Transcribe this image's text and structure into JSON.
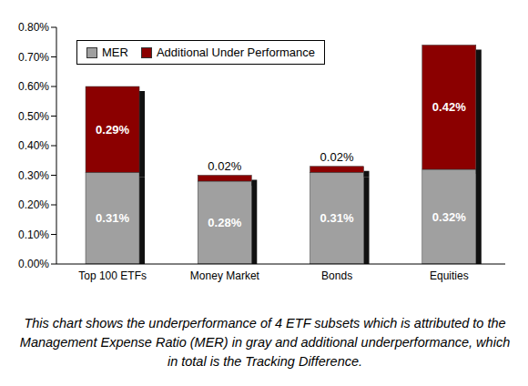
{
  "chart_data": {
    "type": "bar",
    "stacked": true,
    "categories": [
      "Top 100 ETFs",
      "Money Market",
      "Bonds",
      "Equities"
    ],
    "series": [
      {
        "name": "MER",
        "color": "#a0a0a0",
        "values": [
          0.31,
          0.28,
          0.31,
          0.32
        ],
        "value_labels": [
          "0.31%",
          "0.28%",
          "0.31%",
          "0.32%"
        ]
      },
      {
        "name": "Additional Under Performance",
        "color": "#8b0000",
        "values": [
          0.29,
          0.02,
          0.02,
          0.42
        ],
        "value_labels": [
          "0.29%",
          "0.02%",
          "0.02%",
          "0.42%"
        ]
      }
    ],
    "ylim": [
      0,
      0.8
    ],
    "yticks": [
      {
        "value": 0,
        "label": "0.00%"
      },
      {
        "value": 0.1,
        "label": "0.10%"
      },
      {
        "value": 0.2,
        "label": "0.20%"
      },
      {
        "value": 0.3,
        "label": "0.30%"
      },
      {
        "value": 0.4,
        "label": "0.40%"
      },
      {
        "value": 0.5,
        "label": "0.50%"
      },
      {
        "value": 0.6,
        "label": "0.60%"
      },
      {
        "value": 0.7,
        "label": "0.70%"
      },
      {
        "value": 0.8,
        "label": "0.80%"
      }
    ],
    "grid": false,
    "legend": "upper left",
    "data_labels": true,
    "caption": "This chart shows the underperformance of 4 ETF subsets which is attributed to the Management Expense Ratio (MER) in gray and additional underperformance, which in total is the Tracking Difference."
  }
}
